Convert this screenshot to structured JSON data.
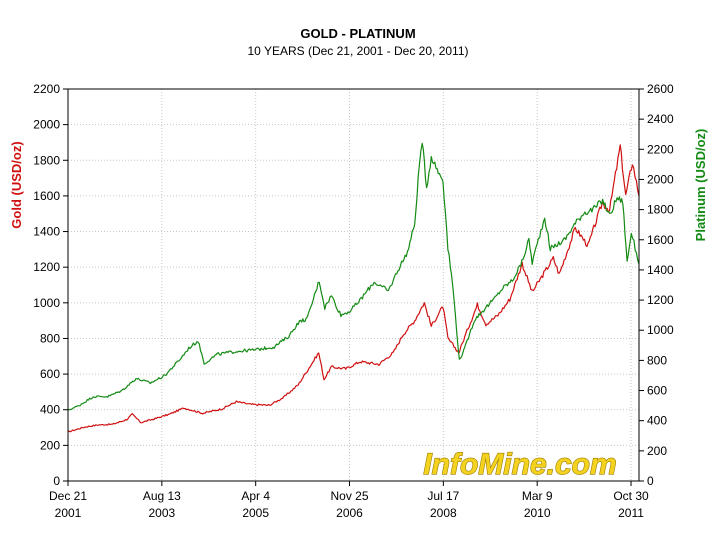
{
  "chart_data": {
    "type": "line",
    "title": "GOLD - PLATINUM",
    "subtitle": "10 YEARS (Dec 21, 2001 - Dec 20, 2011)",
    "ylabel_left": "Gold (USD/oz)",
    "ylabel_right": "Platinum (USD/oz)",
    "ylim_left": [
      0,
      2200
    ],
    "ylim_right": [
      0,
      2600
    ],
    "yticks_left": [
      "0",
      "200",
      "400",
      "600",
      "800",
      "1000",
      "1200",
      "1400",
      "1600",
      "1800",
      "2000",
      "2200"
    ],
    "yticks_right": [
      "0",
      "200",
      "400",
      "600",
      "800",
      "1000",
      "1200",
      "1400",
      "1600",
      "1800",
      "2000",
      "2200",
      "2400",
      "2600"
    ],
    "x_range": [
      "2001-12-21",
      "2011-12-20"
    ],
    "x_ticks": [
      {
        "date": "2001-12-21",
        "label_top": "Dec 21",
        "label_bottom": "2001"
      },
      {
        "date": "2003-08-13",
        "label_top": "Aug 13",
        "label_bottom": "2003"
      },
      {
        "date": "2005-04-04",
        "label_top": "Apr 4",
        "label_bottom": "2005"
      },
      {
        "date": "2006-11-25",
        "label_top": "Nov 25",
        "label_bottom": "2006"
      },
      {
        "date": "2008-07-17",
        "label_top": "Jul 17",
        "label_bottom": "2008"
      },
      {
        "date": "2010-03-09",
        "label_top": "Mar 9",
        "label_bottom": "2010"
      },
      {
        "date": "2011-10-30",
        "label_top": "Oct 30",
        "label_bottom": "2011"
      }
    ],
    "grid": true,
    "watermark": "InfoMine.com",
    "series": [
      {
        "name": "Gold",
        "axis": "left",
        "color": "#d01010",
        "points": [
          [
            "2001-12-21",
            275
          ],
          [
            "2002-04-01",
            302
          ],
          [
            "2002-07-01",
            315
          ],
          [
            "2002-10-01",
            318
          ],
          [
            "2003-01-01",
            345
          ],
          [
            "2003-02-05",
            375
          ],
          [
            "2003-04-01",
            328
          ],
          [
            "2003-07-01",
            350
          ],
          [
            "2003-10-01",
            375
          ],
          [
            "2004-01-01",
            410
          ],
          [
            "2004-05-01",
            380
          ],
          [
            "2004-09-01",
            405
          ],
          [
            "2004-12-01",
            445
          ],
          [
            "2005-03-01",
            430
          ],
          [
            "2005-07-01",
            425
          ],
          [
            "2005-10-01",
            470
          ],
          [
            "2006-01-01",
            540
          ],
          [
            "2006-05-12",
            720
          ],
          [
            "2006-06-15",
            570
          ],
          [
            "2006-08-01",
            640
          ],
          [
            "2006-11-01",
            630
          ],
          [
            "2007-02-01",
            670
          ],
          [
            "2007-06-01",
            655
          ],
          [
            "2007-09-01",
            720
          ],
          [
            "2007-11-01",
            820
          ],
          [
            "2008-01-15",
            900
          ],
          [
            "2008-03-17",
            1000
          ],
          [
            "2008-05-01",
            870
          ],
          [
            "2008-07-15",
            980
          ],
          [
            "2008-08-15",
            800
          ],
          [
            "2008-10-24",
            720
          ],
          [
            "2008-12-01",
            810
          ],
          [
            "2009-02-20",
            990
          ],
          [
            "2009-04-15",
            880
          ],
          [
            "2009-07-01",
            930
          ],
          [
            "2009-09-15",
            1020
          ],
          [
            "2009-12-03",
            1220
          ],
          [
            "2010-02-05",
            1060
          ],
          [
            "2010-06-20",
            1250
          ],
          [
            "2010-07-28",
            1160
          ],
          [
            "2010-11-08",
            1420
          ],
          [
            "2011-01-28",
            1320
          ],
          [
            "2011-04-29",
            1560
          ],
          [
            "2011-06-15",
            1520
          ],
          [
            "2011-08-22",
            1880
          ],
          [
            "2011-09-26",
            1600
          ],
          [
            "2011-11-08",
            1790
          ],
          [
            "2011-12-20",
            1600
          ]
        ]
      },
      {
        "name": "Platinum",
        "axis": "right",
        "color": "#138a13",
        "points": [
          [
            "2001-12-21",
            470
          ],
          [
            "2002-03-01",
            500
          ],
          [
            "2002-06-01",
            560
          ],
          [
            "2002-09-01",
            560
          ],
          [
            "2002-12-01",
            600
          ],
          [
            "2003-03-01",
            680
          ],
          [
            "2003-06-01",
            650
          ],
          [
            "2003-09-01",
            700
          ],
          [
            "2003-12-01",
            800
          ],
          [
            "2004-02-01",
            880
          ],
          [
            "2004-04-01",
            930
          ],
          [
            "2004-05-10",
            780
          ],
          [
            "2004-08-01",
            840
          ],
          [
            "2004-12-01",
            860
          ],
          [
            "2005-04-01",
            870
          ],
          [
            "2005-08-01",
            890
          ],
          [
            "2005-11-01",
            960
          ],
          [
            "2006-01-01",
            1050
          ],
          [
            "2006-03-01",
            1080
          ],
          [
            "2006-05-15",
            1330
          ],
          [
            "2006-06-20",
            1150
          ],
          [
            "2006-08-01",
            1230
          ],
          [
            "2006-10-01",
            1100
          ],
          [
            "2006-12-01",
            1130
          ],
          [
            "2007-02-01",
            1200
          ],
          [
            "2007-05-01",
            1320
          ],
          [
            "2007-08-01",
            1260
          ],
          [
            "2007-10-01",
            1400
          ],
          [
            "2007-12-01",
            1520
          ],
          [
            "2008-01-15",
            1700
          ],
          [
            "2008-02-15",
            2100
          ],
          [
            "2008-03-04",
            2250
          ],
          [
            "2008-04-01",
            1950
          ],
          [
            "2008-05-01",
            2150
          ],
          [
            "2008-06-15",
            2050
          ],
          [
            "2008-07-15",
            2000
          ],
          [
            "2008-08-15",
            1550
          ],
          [
            "2008-09-15",
            1300
          ],
          [
            "2008-10-27",
            800
          ],
          [
            "2008-12-01",
            880
          ],
          [
            "2009-02-01",
            1070
          ],
          [
            "2009-04-15",
            1150
          ],
          [
            "2009-06-01",
            1200
          ],
          [
            "2009-08-01",
            1280
          ],
          [
            "2009-10-01",
            1330
          ],
          [
            "2009-12-01",
            1450
          ],
          [
            "2010-01-15",
            1600
          ],
          [
            "2010-02-05",
            1450
          ],
          [
            "2010-04-26",
            1750
          ],
          [
            "2010-06-01",
            1540
          ],
          [
            "2010-07-01",
            1560
          ],
          [
            "2010-09-01",
            1600
          ],
          [
            "2010-11-01",
            1700
          ],
          [
            "2011-01-01",
            1780
          ],
          [
            "2011-03-01",
            1800
          ],
          [
            "2011-05-02",
            1860
          ],
          [
            "2011-06-15",
            1760
          ],
          [
            "2011-08-02",
            1880
          ],
          [
            "2011-09-08",
            1850
          ],
          [
            "2011-10-05",
            1450
          ],
          [
            "2011-11-01",
            1650
          ],
          [
            "2011-12-20",
            1440
          ]
        ]
      }
    ]
  }
}
